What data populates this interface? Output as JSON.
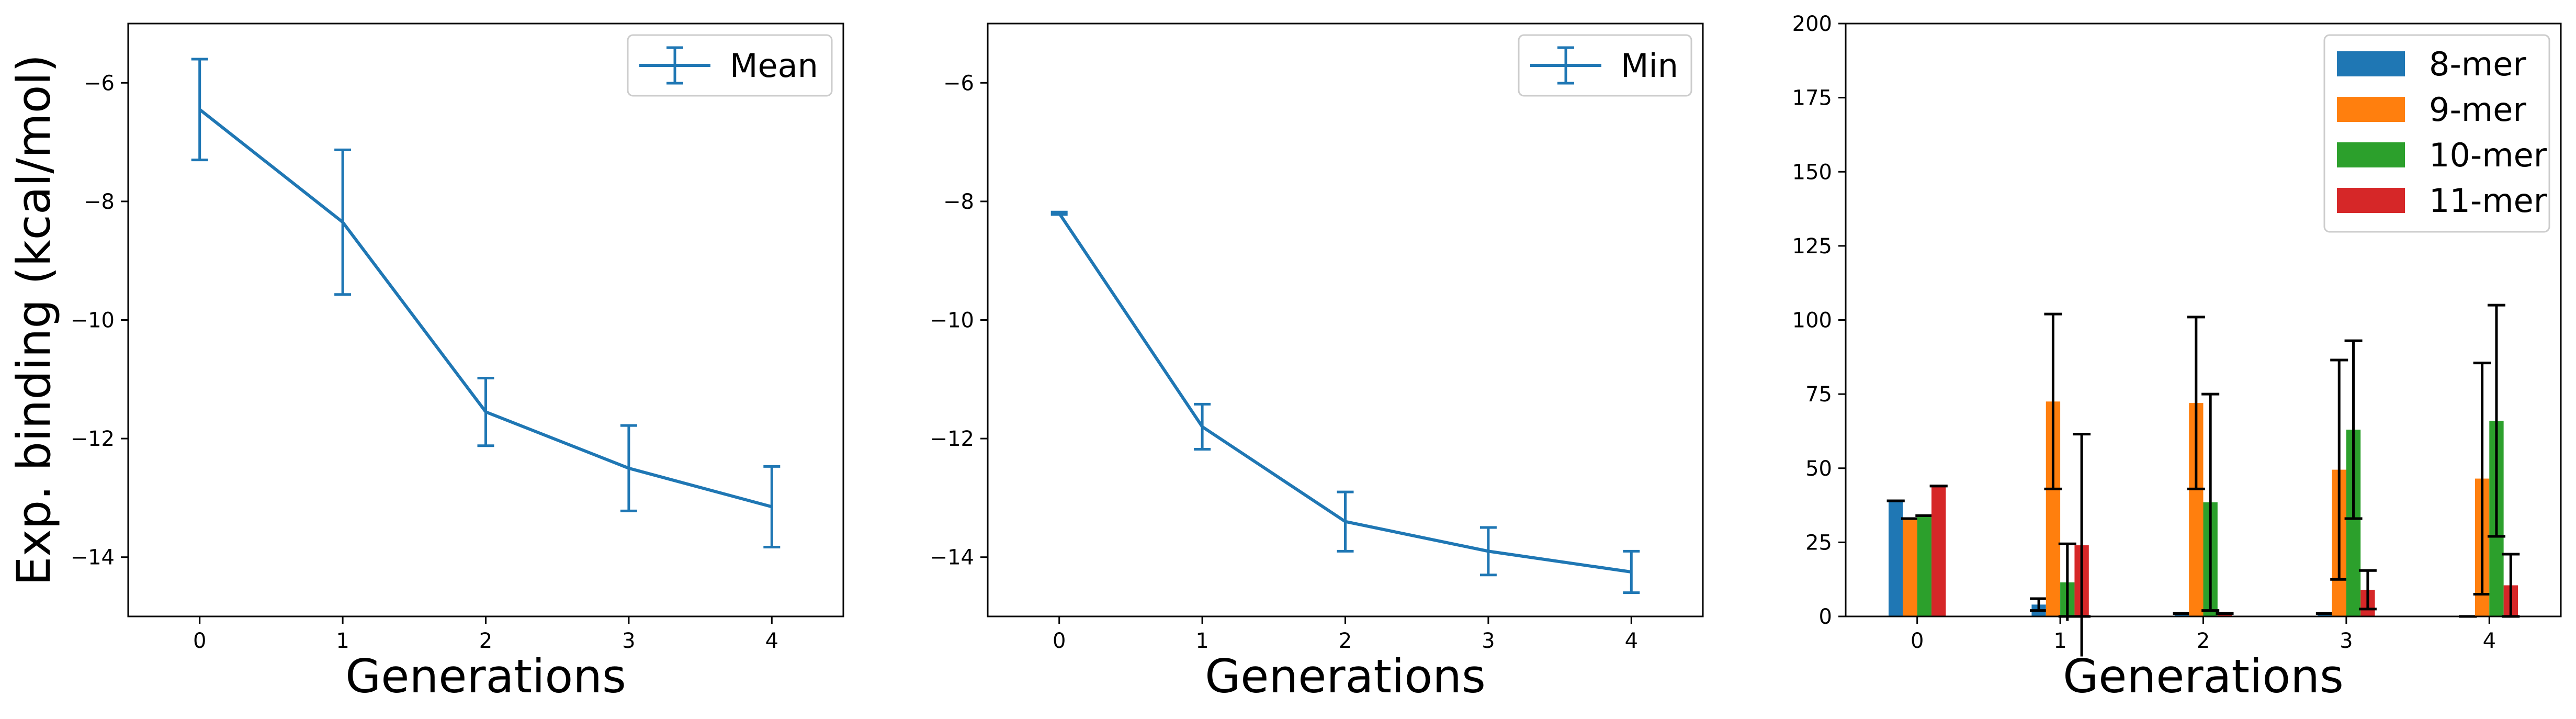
{
  "figure": {
    "shared_ylabel": "Exp. binding (kcal/mol)"
  },
  "chart_data": [
    {
      "type": "line",
      "xlabel": "Generations",
      "ylabel": "Exp. binding (kcal/mol)",
      "x": [
        0,
        1,
        2,
        3,
        4
      ],
      "x_ticks": [
        "0",
        "1",
        "2",
        "3",
        "4"
      ],
      "xlim": [
        -0.5,
        4.5
      ],
      "ylim": [
        -15,
        -5
      ],
      "y_ticks": [
        "−6",
        "−8",
        "−10",
        "−12",
        "−14"
      ],
      "y_tick_values": [
        -6,
        -8,
        -10,
        -12,
        -14
      ],
      "legend_position": "top-right",
      "series": [
        {
          "name": "Mean",
          "color": "#1f77b4",
          "values": [
            -6.45,
            -8.35,
            -11.55,
            -12.5,
            -13.15
          ],
          "error": [
            0.85,
            1.22,
            0.57,
            0.72,
            0.68
          ]
        }
      ]
    },
    {
      "type": "line",
      "xlabel": "Generations",
      "x": [
        0,
        1,
        2,
        3,
        4
      ],
      "x_ticks": [
        "0",
        "1",
        "2",
        "3",
        "4"
      ],
      "xlim": [
        -0.5,
        4.5
      ],
      "ylim": [
        -15,
        -5
      ],
      "y_ticks": [
        "−6",
        "−8",
        "−10",
        "−12",
        "−14"
      ],
      "y_tick_values": [
        -6,
        -8,
        -10,
        -12,
        -14
      ],
      "legend_position": "top-right",
      "series": [
        {
          "name": "Min",
          "color": "#1f77b4",
          "values": [
            -8.2,
            -11.8,
            -13.4,
            -13.9,
            -14.25
          ],
          "error": [
            0.02,
            0.38,
            0.5,
            0.4,
            0.35
          ]
        }
      ]
    },
    {
      "type": "bar",
      "xlabel": "Generations",
      "categories": [
        "0",
        "1",
        "2",
        "3",
        "4"
      ],
      "xlim": [
        -0.5,
        4.5
      ],
      "ylim": [
        0,
        200
      ],
      "y_ticks": [
        "0",
        "25",
        "50",
        "75",
        "100",
        "125",
        "150",
        "175",
        "200"
      ],
      "y_tick_values": [
        0,
        25,
        50,
        75,
        100,
        125,
        150,
        175,
        200
      ],
      "legend_position": "top-right",
      "series": [
        {
          "name": "8-mer",
          "color": "#1f77b4",
          "values": [
            39,
            4,
            1,
            1,
            0
          ],
          "error": [
            0,
            2,
            0,
            0,
            0
          ]
        },
        {
          "name": "9-mer",
          "color": "#ff7f0e",
          "values": [
            33,
            72.5,
            72,
            49.5,
            46.5
          ],
          "error": [
            0,
            29.5,
            29,
            37,
            39
          ]
        },
        {
          "name": "10-mer",
          "color": "#2ca02c",
          "values": [
            34,
            11.5,
            38.5,
            63,
            66
          ],
          "error": [
            0,
            13,
            36.5,
            30,
            39
          ]
        },
        {
          "name": "11-mer",
          "color": "#d62728",
          "values": [
            44,
            24,
            1,
            9,
            10.5
          ],
          "error": [
            0,
            37.5,
            0,
            6.5,
            10.5
          ]
        }
      ]
    }
  ]
}
